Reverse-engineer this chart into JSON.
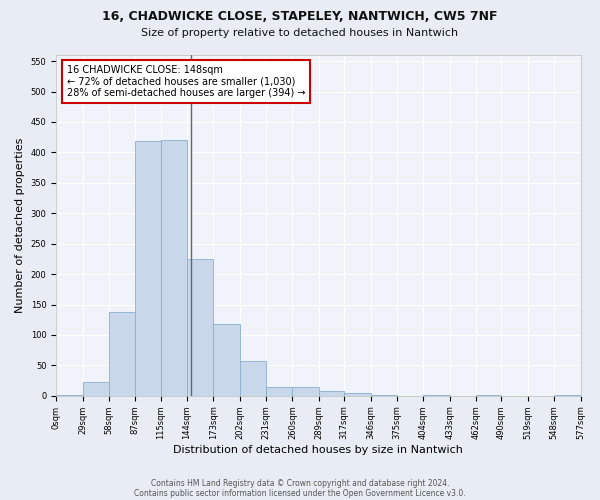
{
  "title1": "16, CHADWICKE CLOSE, STAPELEY, NANTWICH, CW5 7NF",
  "title2": "Size of property relative to detached houses in Nantwich",
  "xlabel": "Distribution of detached houses by size in Nantwich",
  "ylabel": "Number of detached properties",
  "bin_edges": [
    0,
    29,
    58,
    87,
    115,
    144,
    173,
    202,
    231,
    260,
    289,
    317,
    346,
    375,
    404,
    433,
    462,
    490,
    519,
    548,
    577
  ],
  "bar_heights": [
    2,
    22,
    138,
    418,
    420,
    225,
    118,
    58,
    14,
    14,
    8,
    5,
    1,
    0,
    1,
    0,
    1,
    0,
    0,
    1
  ],
  "bar_color": "#c8d8ea",
  "bar_edge_color": "#8ab0cc",
  "property_size": 148,
  "annotation_line1": "16 CHADWICKE CLOSE: 148sqm",
  "annotation_line2": "← 72% of detached houses are smaller (1,030)",
  "annotation_line3": "28% of semi-detached houses are larger (394) →",
  "annotation_box_color": "white",
  "annotation_box_edge_color": "#cc0000",
  "vline_color": "#666666",
  "ylim_max": 560,
  "yticks": [
    0,
    50,
    100,
    150,
    200,
    250,
    300,
    350,
    400,
    450,
    500,
    550
  ],
  "footer1": "Contains HM Land Registry data © Crown copyright and database right 2024.",
  "footer2": "Contains public sector information licensed under the Open Government Licence v3.0.",
  "bg_color": "#e8edf5",
  "plot_bg_color": "#f0f4fa",
  "grid_color": "#ffffff",
  "title_fontsize": 9,
  "subtitle_fontsize": 8,
  "tick_label_fontsize": 6,
  "ylabel_fontsize": 8,
  "xlabel_fontsize": 8,
  "annotation_fontsize": 7,
  "footer_fontsize": 5.5
}
